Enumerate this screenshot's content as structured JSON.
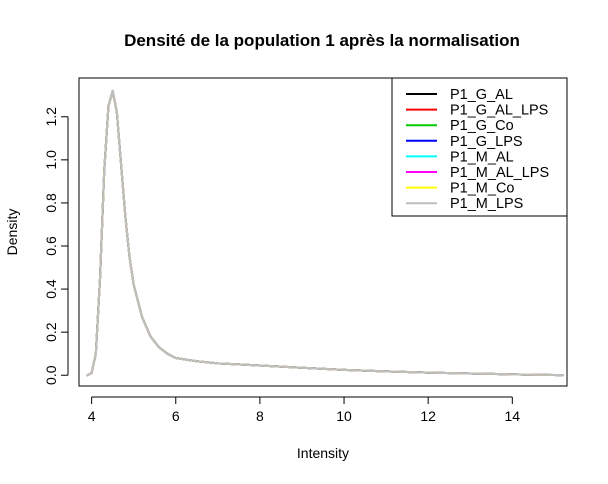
{
  "chart_data": {
    "type": "line",
    "title": "Densité de la population 1 après la normalisation",
    "xlabel": "Intensity",
    "ylabel": "Density",
    "xlim": [
      3.7,
      15.3
    ],
    "ylim": [
      -0.05,
      1.38
    ],
    "xticks": [
      4,
      6,
      8,
      10,
      12,
      14
    ],
    "yticks": [
      0.0,
      0.2,
      0.4,
      0.6,
      0.8,
      1.0,
      1.2
    ],
    "ytick_labels": [
      "0.0",
      "0.2",
      "0.4",
      "0.6",
      "0.8",
      "1.0",
      "1.2"
    ],
    "grid": false,
    "legend_position": "top-right",
    "x": [
      3.9,
      4.0,
      4.1,
      4.2,
      4.3,
      4.4,
      4.5,
      4.6,
      4.7,
      4.8,
      4.9,
      5.0,
      5.2,
      5.4,
      5.6,
      5.8,
      6.0,
      6.5,
      7.0,
      8.0,
      9.0,
      10.0,
      11.0,
      12.0,
      13.0,
      14.0,
      14.5,
      15.0,
      15.2
    ],
    "y": [
      0.0,
      0.01,
      0.1,
      0.45,
      0.95,
      1.25,
      1.32,
      1.22,
      0.98,
      0.74,
      0.55,
      0.42,
      0.27,
      0.18,
      0.13,
      0.1,
      0.08,
      0.065,
      0.055,
      0.045,
      0.035,
      0.025,
      0.018,
      0.012,
      0.008,
      0.004,
      0.002,
      0.001,
      0.0
    ],
    "series": [
      {
        "name": "P1_G_AL",
        "color": "#000000"
      },
      {
        "name": "P1_G_AL_LPS",
        "color": "#ff0000"
      },
      {
        "name": "P1_G_Co",
        "color": "#00cd00"
      },
      {
        "name": "P1_G_LPS",
        "color": "#0000ff"
      },
      {
        "name": "P1_M_AL",
        "color": "#00ffff"
      },
      {
        "name": "P1_M_AL_LPS",
        "color": "#ff00ff"
      },
      {
        "name": "P1_M_Co",
        "color": "#ffff00"
      },
      {
        "name": "P1_M_LPS",
        "color": "#bebebe"
      }
    ]
  }
}
